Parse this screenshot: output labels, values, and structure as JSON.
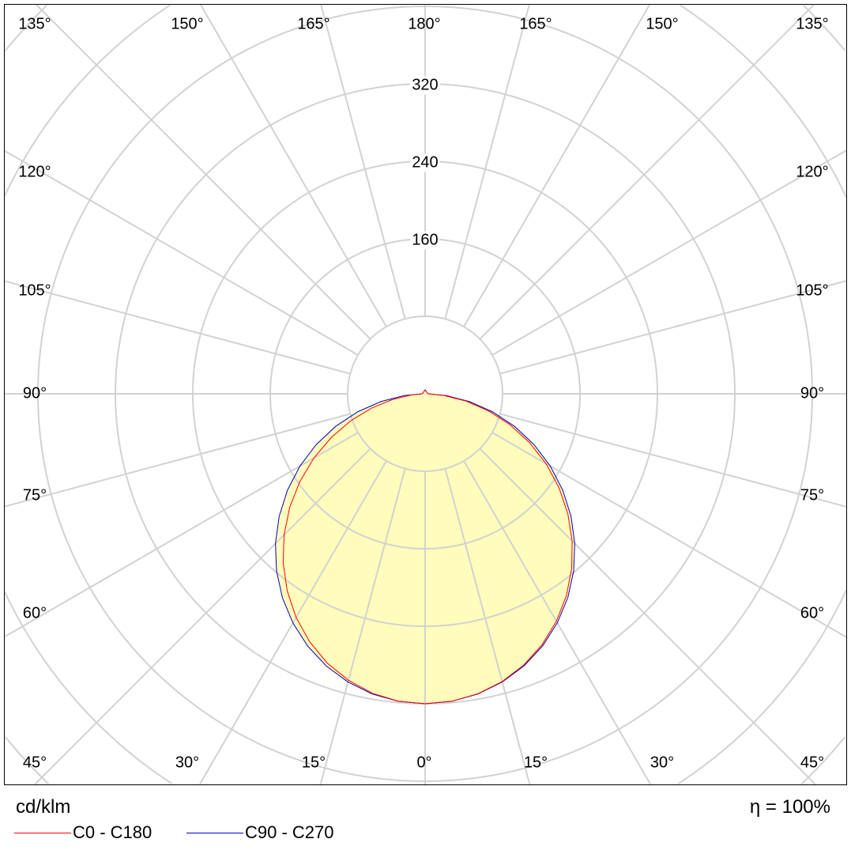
{
  "chart_data": {
    "type": "polar",
    "unit_label": "cd/klm",
    "efficiency_label": "η =",
    "efficiency_value": "100%",
    "radial_ticks": [
      80,
      160,
      240,
      320,
      400,
      480,
      560
    ],
    "radial_tick_labels": [
      "160",
      "240",
      "320"
    ],
    "radial_tick_label_values": [
      160,
      240,
      320
    ],
    "angle_labels_bottom": [
      "45°",
      "30°",
      "15°",
      "0°",
      "15°",
      "30°",
      "45°"
    ],
    "angle_labels_top": [
      "135°",
      "150°",
      "165°",
      "180°",
      "165°",
      "150°",
      "135°"
    ],
    "angle_labels_left": [
      "120°",
      "105°",
      "90°",
      "75°",
      "60°"
    ],
    "angle_labels_right": [
      "120°",
      "105°",
      "90°",
      "75°",
      "60°"
    ],
    "grid": true,
    "legend_placement": "bottom-left",
    "angles": [
      0,
      5,
      10,
      15,
      20,
      25,
      30,
      35,
      40,
      45,
      50,
      55,
      60,
      65,
      70,
      75,
      80,
      85,
      90,
      180
    ],
    "series": [
      {
        "name": "C0 - C180",
        "color": "#ff0000",
        "c0": [
          320,
          318.6,
          314.4,
          307.5,
          298.0,
          285.8,
          271.2,
          254.5,
          235.6,
          214.8,
          192.5,
          168.8,
          144.2,
          118.9,
          93.2,
          67.7,
          42.7,
          19.4,
          3,
          4
        ],
        "c180": [
          320,
          318.5,
          313.9,
          306.2,
          295.8,
          282.4,
          266.6,
          248.4,
          228.1,
          206.1,
          182.6,
          158.0,
          132.7,
          107.2,
          81.9,
          57.6,
          34.6,
          14.5,
          3,
          4
        ]
      },
      {
        "name": "C90 - C270",
        "color": "#0000c0",
        "c90": [
          320,
          318.7,
          314.7,
          308.0,
          298.9,
          287.2,
          273.2,
          257.0,
          238.7,
          218.6,
          196.8,
          173.6,
          149.3,
          124.1,
          98.3,
          72.4,
          46.6,
          21.9,
          3,
          4
        ],
        "c270": [
          320,
          318.7,
          314.7,
          308.0,
          298.9,
          287.2,
          273.2,
          257.0,
          238.7,
          218.6,
          196.8,
          173.6,
          149.3,
          124.1,
          98.3,
          72.4,
          46.6,
          21.9,
          3,
          4
        ]
      }
    ],
    "fill_color": "#fffbb0",
    "grid_color": "#d2d2d2"
  }
}
